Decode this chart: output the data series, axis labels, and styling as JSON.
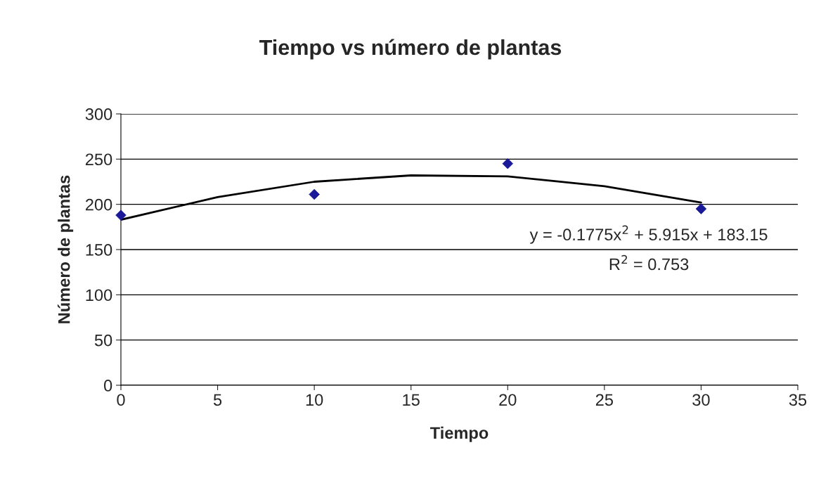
{
  "chart_data": {
    "type": "scatter",
    "title": "Tiempo vs número de plantas",
    "xlabel": "Tiempo",
    "ylabel": "Número de plantas",
    "series": [
      {
        "color": "#1a1a99",
        "marker": "diamond",
        "x": [
          0,
          10,
          20,
          30
        ],
        "values": [
          188,
          211,
          245,
          195
        ]
      },
      {
        "type": "line",
        "color": "#000000",
        "marker": "none",
        "line_style": "solid",
        "x": [
          0,
          5,
          10,
          15,
          20,
          25,
          30
        ],
        "values": [
          183,
          208,
          225,
          232,
          231,
          220,
          202
        ]
      }
    ],
    "annotations": [
      "y = -0.1775x$^{2}$ + 5.915x + 183.15",
      "R$^{2}$ = 0.753"
    ],
    "xlim": [
      0,
      35
    ],
    "xticks": [
      0,
      5,
      10,
      15,
      20,
      25,
      30,
      35
    ],
    "ylim": [
      0,
      300
    ],
    "yticks": [
      0,
      50,
      100,
      150,
      200,
      250,
      300
    ],
    "grid": "y",
    "legend": false
  }
}
